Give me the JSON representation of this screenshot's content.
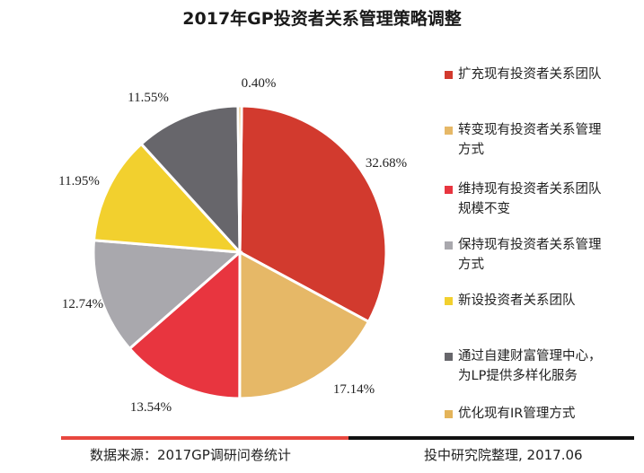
{
  "chart_data": {
    "type": "pie",
    "title": "2017年GP投资者关系管理策略调整",
    "slices": [
      {
        "label": "扩充现有投资者关系团队",
        "value": 32.68,
        "display": "32.68%",
        "color": "#d23a2e"
      },
      {
        "label": "转变现有投资者关系管理方式",
        "value": 17.14,
        "display": "17.14%",
        "color": "#e6b867"
      },
      {
        "label": "维持现有投资者关系团队规模不变",
        "value": 13.54,
        "display": "13.54%",
        "color": "#e8353f"
      },
      {
        "label": "保持现有投资者关系管理方式",
        "value": 12.74,
        "display": "12.74%",
        "color": "#a9a8ad"
      },
      {
        "label": "新设投资者关系团队",
        "value": 11.95,
        "display": "11.95%",
        "color": "#f2d02e"
      },
      {
        "label": "通过自建财富管理中心，为LP提供多样化服务",
        "value": 11.55,
        "display": "11.55%",
        "color": "#67666b"
      },
      {
        "label": "优化现有IR管理方式",
        "value": 0.4,
        "display": "0.40%",
        "color": "#e4b45a"
      }
    ],
    "legend_placement": "right"
  },
  "legend": [
    {
      "line1": "扩充现有投资者关系团队",
      "line2": ""
    },
    {
      "line1": "转变现有投资者关系管理",
      "line2": "方式"
    },
    {
      "line1": "维持现有投资者关系团队",
      "line2": "规模不变"
    },
    {
      "line1": "保持现有投资者关系管理",
      "line2": "方式"
    },
    {
      "line1": "新设投资者关系团队",
      "line2": ""
    },
    {
      "line1": "通过自建财富管理中心，",
      "line2": "为LP提供多样化服务"
    },
    {
      "line1": "优化现有IR管理方式",
      "line2": ""
    }
  ],
  "footer": {
    "source": "数据来源：2017GP调研问卷统计",
    "credit": "投中研究院整理, 2017.06"
  }
}
